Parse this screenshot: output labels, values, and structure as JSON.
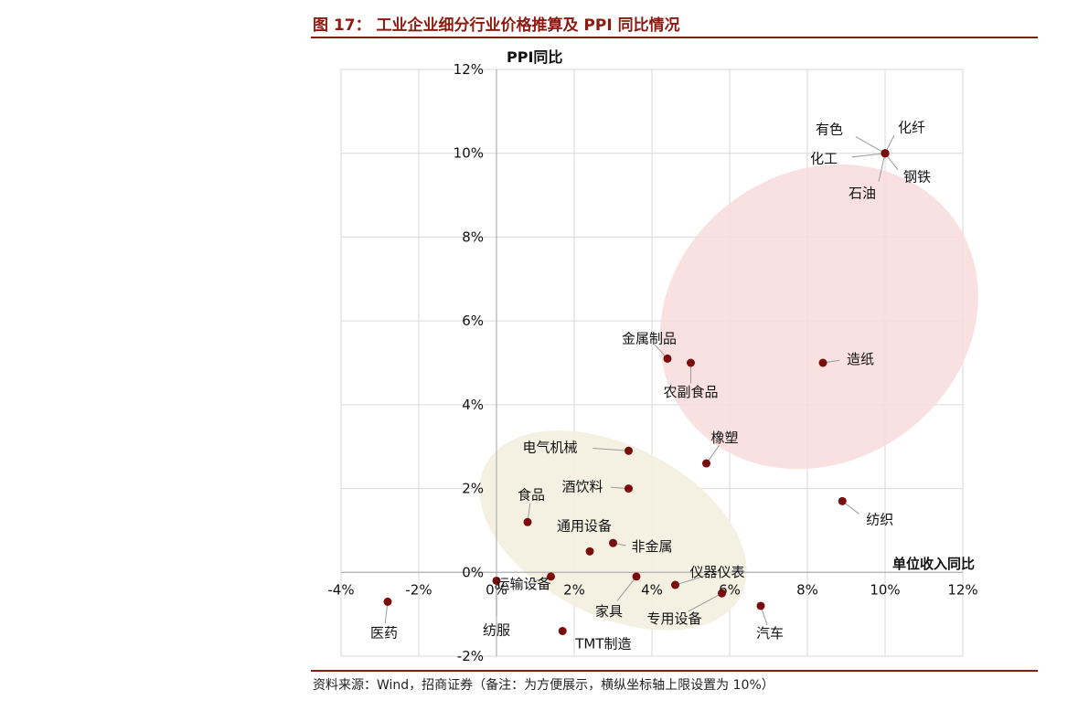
{
  "figure_title": "图 17： 工业企业细分行业价格推算及 PPI 同比情况",
  "source_note": "资料来源：Wind，招商证券（备注：为方便展示，横纵坐标轴上限设置为 10%）",
  "chart_data": {
    "type": "scatter",
    "xlabel": "单位收入同比",
    "ylabel": "PPI同比",
    "xlim": [
      -4,
      12
    ],
    "ylim": [
      -2,
      12
    ],
    "x_ticks": [
      "-4%",
      "-2%",
      "0%",
      "2%",
      "4%",
      "6%",
      "8%",
      "10%",
      "12%"
    ],
    "y_ticks": [
      "-2%",
      "0%",
      "2%",
      "4%",
      "6%",
      "8%",
      "10%",
      "12%"
    ],
    "grid": true,
    "colors": {
      "point": "#7a0c0c",
      "upper_ellipse": "#f9dcdc",
      "lower_ellipse": "#f3f0e0",
      "accent": "#8b1a10"
    },
    "points": [
      {
        "label": "有色",
        "x": 10.0,
        "y": 10.0
      },
      {
        "label": "化纤",
        "x": 10.0,
        "y": 10.0
      },
      {
        "label": "化工",
        "x": 10.0,
        "y": 10.0
      },
      {
        "label": "钢铁",
        "x": 10.0,
        "y": 10.0
      },
      {
        "label": "石油",
        "x": 10.0,
        "y": 10.0
      },
      {
        "label": "金属制品",
        "x": 4.4,
        "y": 5.1
      },
      {
        "label": "农副食品",
        "x": 5.0,
        "y": 5.0
      },
      {
        "label": "造纸",
        "x": 8.4,
        "y": 5.0
      },
      {
        "label": "橡塑",
        "x": 5.4,
        "y": 2.6
      },
      {
        "label": "电气机械",
        "x": 3.4,
        "y": 2.9
      },
      {
        "label": "酒饮料",
        "x": 3.4,
        "y": 2.0
      },
      {
        "label": "食品",
        "x": 0.8,
        "y": 1.2
      },
      {
        "label": "纺织",
        "x": 8.9,
        "y": 1.7
      },
      {
        "label": "通用设备",
        "x": 2.4,
        "y": 0.5
      },
      {
        "label": "非金属",
        "x": 3.0,
        "y": 0.7
      },
      {
        "label": "运输设备",
        "x": 1.4,
        "y": -0.1
      },
      {
        "label": "家具",
        "x": 3.6,
        "y": -0.1
      },
      {
        "label": "仪器仪表",
        "x": 4.6,
        "y": -0.3
      },
      {
        "label": "专用设备",
        "x": 5.8,
        "y": -0.5
      },
      {
        "label": "汽车",
        "x": 6.8,
        "y": -0.8
      },
      {
        "label": "医药",
        "x": -2.8,
        "y": -0.7
      },
      {
        "label": "纺服",
        "x": 0.0,
        "y": -0.2
      },
      {
        "label": "TMT制造",
        "x": 1.7,
        "y": -1.4
      }
    ]
  }
}
